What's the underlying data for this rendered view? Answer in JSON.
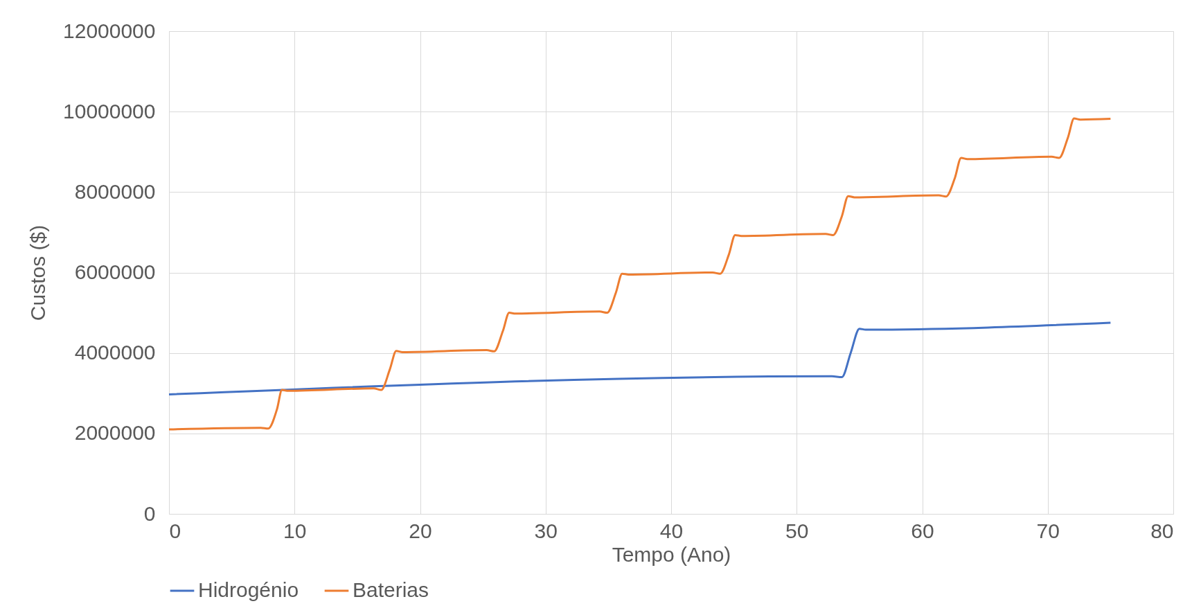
{
  "chart_data": {
    "type": "line",
    "xlabel": "Tempo (Ano)",
    "ylabel": "Custos ($)",
    "xlim": [
      0,
      80
    ],
    "xticks": [
      0,
      10,
      20,
      30,
      40,
      50,
      60,
      70,
      80
    ],
    "ylim": [
      0,
      12000000
    ],
    "yticks": [
      0,
      2000000,
      4000000,
      6000000,
      8000000,
      10000000,
      12000000
    ],
    "grid": true,
    "legend": "bottom",
    "marker": "none",
    "line_style": "solid",
    "series": [
      {
        "name": "Hidrogénio",
        "color": "#4472c4",
        "x": [
          0,
          52.8,
          53.6,
          54.3,
          55.0,
          55.5,
          75
        ],
        "values": [
          2970000,
          3420000,
          3400000,
          4000000,
          4600000,
          4580000,
          4750000
        ]
      },
      {
        "name": "Baterias",
        "color": "#ed7d31",
        "x": [
          0,
          7.3,
          7.9,
          8.6,
          9.0,
          9.5,
          16.3,
          16.9,
          17.6,
          18.1,
          18.6,
          25.3,
          25.9,
          26.6,
          27.1,
          27.6,
          34.3,
          34.9,
          35.6,
          36.1,
          36.6,
          43.3,
          43.9,
          44.6,
          45.1,
          45.6,
          52.3,
          52.9,
          53.6,
          54.1,
          54.6,
          61.3,
          61.9,
          62.6,
          63.1,
          63.6,
          70.3,
          70.9,
          71.6,
          72.1,
          72.6,
          75
        ],
        "values": [
          2100000,
          2140000,
          2120000,
          2600000,
          3080000,
          3060000,
          3120000,
          3080000,
          3600000,
          4050000,
          4020000,
          4070000,
          4040000,
          4550000,
          5000000,
          4980000,
          5030000,
          5000000,
          5500000,
          5970000,
          5950000,
          6000000,
          5970000,
          6450000,
          6930000,
          6910000,
          6960000,
          6930000,
          7400000,
          7900000,
          7870000,
          7920000,
          7890000,
          8350000,
          8850000,
          8820000,
          8880000,
          8850000,
          9350000,
          9830000,
          9800000,
          9820000
        ]
      }
    ]
  }
}
